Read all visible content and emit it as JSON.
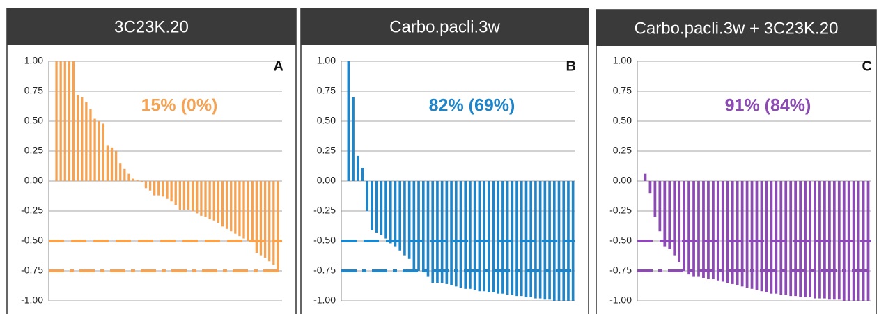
{
  "chart_data": [
    {
      "type": "bar",
      "title": "3C23K.20",
      "annotation": "15% (0%)",
      "panel_label": "A",
      "color": "#f5a352",
      "values": [
        1,
        1,
        1,
        1,
        1,
        0.72,
        0.7,
        0.66,
        0.6,
        0.52,
        0.5,
        0.48,
        0.3,
        0.28,
        0.25,
        0.15,
        0.1,
        0.06,
        0.02,
        0.01,
        -0.01,
        -0.06,
        -0.08,
        -0.12,
        -0.12,
        -0.13,
        -0.15,
        -0.17,
        -0.2,
        -0.24,
        -0.24,
        -0.24,
        -0.25,
        -0.27,
        -0.29,
        -0.3,
        -0.32,
        -0.33,
        -0.35,
        -0.38,
        -0.4,
        -0.42,
        -0.44,
        -0.46,
        -0.48,
        -0.5,
        -0.51,
        -0.6,
        -0.62,
        -0.64,
        -0.67,
        -0.7,
        -0.74
      ],
      "reference_lines": [
        -0.5,
        -0.75
      ],
      "ylim": [
        -1,
        1
      ],
      "yticks": [
        {
          "value": 1,
          "label": "1.00"
        },
        {
          "value": 0.75,
          "label": "0.75"
        },
        {
          "value": 0.5,
          "label": "0.50"
        },
        {
          "value": 0.25,
          "label": "0.25"
        },
        {
          "value": 0,
          "label": "0.00"
        },
        {
          "value": -0.25,
          "label": "-0.25"
        },
        {
          "value": -0.5,
          "label": "-0.50"
        },
        {
          "value": -0.75,
          "label": "-0.75"
        },
        {
          "value": -1,
          "label": "-1.00"
        }
      ],
      "grid": true
    },
    {
      "type": "bar",
      "title": "Carbo.pacli.3w",
      "annotation": "82% (69%)",
      "panel_label": "B",
      "color": "#1f84c8",
      "values": [
        1,
        0.7,
        0.21,
        0.11,
        -0.25,
        -0.41,
        -0.43,
        -0.45,
        -0.48,
        -0.52,
        -0.55,
        -0.58,
        -0.62,
        -0.65,
        -0.75,
        -0.75,
        -0.76,
        -0.8,
        -0.85,
        -0.85,
        -0.85,
        -0.86,
        -0.87,
        -0.88,
        -0.89,
        -0.9,
        -0.9,
        -0.91,
        -0.92,
        -0.92,
        -0.93,
        -0.93,
        -0.94,
        -0.94,
        -0.95,
        -0.95,
        -0.96,
        -0.96,
        -0.97,
        -0.97,
        -0.98,
        -0.98,
        -0.99,
        -0.99,
        -1,
        -1,
        -1,
        -1,
        -1
      ],
      "reference_lines": [
        -0.5,
        -0.75
      ],
      "ylim": [
        -1,
        1
      ],
      "yticks": [
        {
          "value": 1,
          "label": "1.00"
        },
        {
          "value": 0.75,
          "label": "0.75"
        },
        {
          "value": 0.5,
          "label": "0.50"
        },
        {
          "value": 0.25,
          "label": "0.25"
        },
        {
          "value": 0,
          "label": "0.00"
        },
        {
          "value": -0.25,
          "label": "-0.25"
        },
        {
          "value": -0.5,
          "label": "-0.50"
        },
        {
          "value": -0.75,
          "label": "-0.75"
        },
        {
          "value": -1,
          "label": "-1.00"
        }
      ],
      "grid": true
    },
    {
      "type": "bar",
      "title": "Carbo.pacli.3w + 3C23K.20",
      "annotation": "91% (84%)",
      "panel_label": "C",
      "color": "#8b4bb3",
      "values": [
        0.06,
        -0.1,
        -0.3,
        -0.42,
        -0.55,
        -0.57,
        -0.62,
        -0.68,
        -0.75,
        -0.78,
        -0.8,
        -0.8,
        -0.81,
        -0.82,
        -0.82,
        -0.83,
        -0.84,
        -0.85,
        -0.86,
        -0.87,
        -0.88,
        -0.89,
        -0.9,
        -0.91,
        -0.92,
        -0.93,
        -0.94,
        -0.94,
        -0.95,
        -0.95,
        -0.96,
        -0.96,
        -0.97,
        -0.97,
        -0.97,
        -0.98,
        -0.98,
        -0.98,
        -0.99,
        -0.99,
        -0.99,
        -1,
        -1,
        -1,
        -1,
        -1,
        -1
      ],
      "reference_lines": [
        -0.5,
        -0.75
      ],
      "ylim": [
        -1,
        1
      ],
      "yticks": [
        {
          "value": 1,
          "label": "1.00"
        },
        {
          "value": 0.75,
          "label": "0.75"
        },
        {
          "value": 0.5,
          "label": "0.50"
        },
        {
          "value": 0.25,
          "label": "0.25"
        },
        {
          "value": 0,
          "label": "0.00"
        },
        {
          "value": -0.25,
          "label": "-0.25"
        },
        {
          "value": -0.5,
          "label": "-0.50"
        },
        {
          "value": -0.75,
          "label": "-0.75"
        },
        {
          "value": -1,
          "label": "-1.00"
        }
      ],
      "grid": true
    }
  ]
}
